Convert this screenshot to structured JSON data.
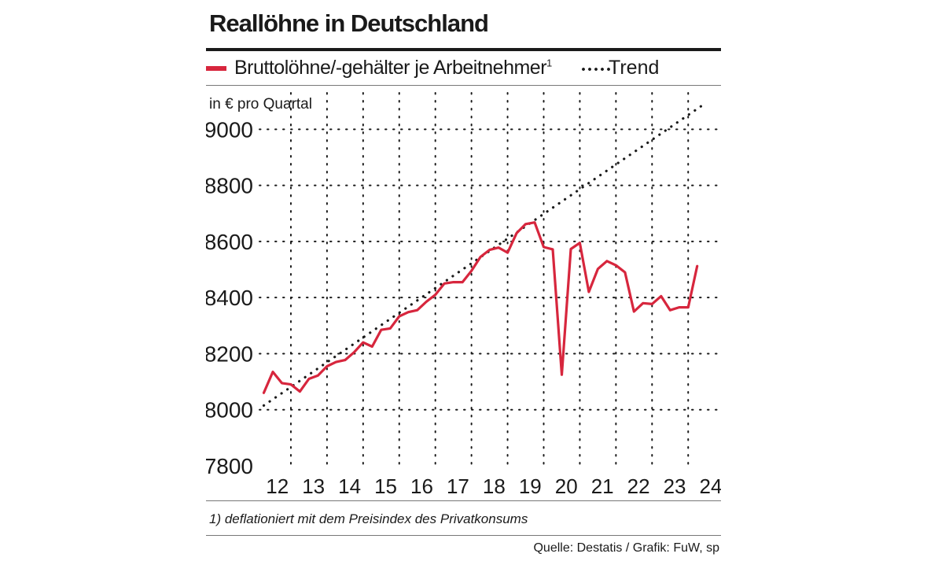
{
  "colors": {
    "series": "#d7263d",
    "trend": "#1a1a1a",
    "grid": "#1a1a1a"
  },
  "chart_data": {
    "type": "line",
    "title": "Reallöhne in Deutschland",
    "ylabel": "in € pro Quartal",
    "xlabel": "",
    "ylim": [
      7800,
      9100
    ],
    "yticks": [
      7800,
      8000,
      8200,
      8400,
      8600,
      8800,
      9000
    ],
    "xticks": [
      "12",
      "13",
      "14",
      "15",
      "16",
      "17",
      "18",
      "19",
      "20",
      "21",
      "22",
      "23",
      "24"
    ],
    "grid": true,
    "legend_position": "top",
    "x_unit": "quarter, value = year.fraction (2012.0 = Q1 2012)",
    "series": [
      {
        "name": "Bruttolöhne/-gehälter je Arbeitnehmer",
        "name_superscript": "1",
        "style": "solid",
        "x": [
          2012.0,
          2012.25,
          2012.5,
          2012.75,
          2013.0,
          2013.25,
          2013.5,
          2013.75,
          2014.0,
          2014.25,
          2014.5,
          2014.75,
          2015.0,
          2015.25,
          2015.5,
          2015.75,
          2016.0,
          2016.25,
          2016.5,
          2016.75,
          2017.0,
          2017.25,
          2017.5,
          2017.75,
          2018.0,
          2018.25,
          2018.5,
          2018.75,
          2019.0,
          2019.25,
          2019.5,
          2019.75,
          2020.0,
          2020.25,
          2020.5,
          2020.75,
          2021.0,
          2021.25,
          2021.5,
          2021.75,
          2022.0,
          2022.25,
          2022.5,
          2022.75,
          2023.0,
          2023.25,
          2023.5,
          2023.75
        ],
        "values": [
          8060,
          8135,
          8095,
          8090,
          8065,
          8110,
          8122,
          8155,
          8170,
          8177,
          8205,
          8240,
          8225,
          8285,
          8290,
          8333,
          8348,
          8355,
          8385,
          8410,
          8450,
          8455,
          8455,
          8495,
          8545,
          8570,
          8578,
          8560,
          8630,
          8662,
          8668,
          8580,
          8572,
          8125,
          8573,
          8595,
          8420,
          8502,
          8530,
          8515,
          8490,
          8350,
          8380,
          8377,
          8405,
          8355,
          8365,
          8365
        ]
      },
      {
        "name": "Trend",
        "style": "dotted",
        "x": [
          2012.0,
          2024.25
        ],
        "values": [
          8015,
          9095
        ]
      }
    ],
    "last_point": {
      "x": 2024.0,
      "value": 8512
    }
  },
  "footnote": "1) deflationiert mit dem Preisindex des Privatkonsums",
  "source": "Quelle: Destatis / Grafik: FuW, sp"
}
